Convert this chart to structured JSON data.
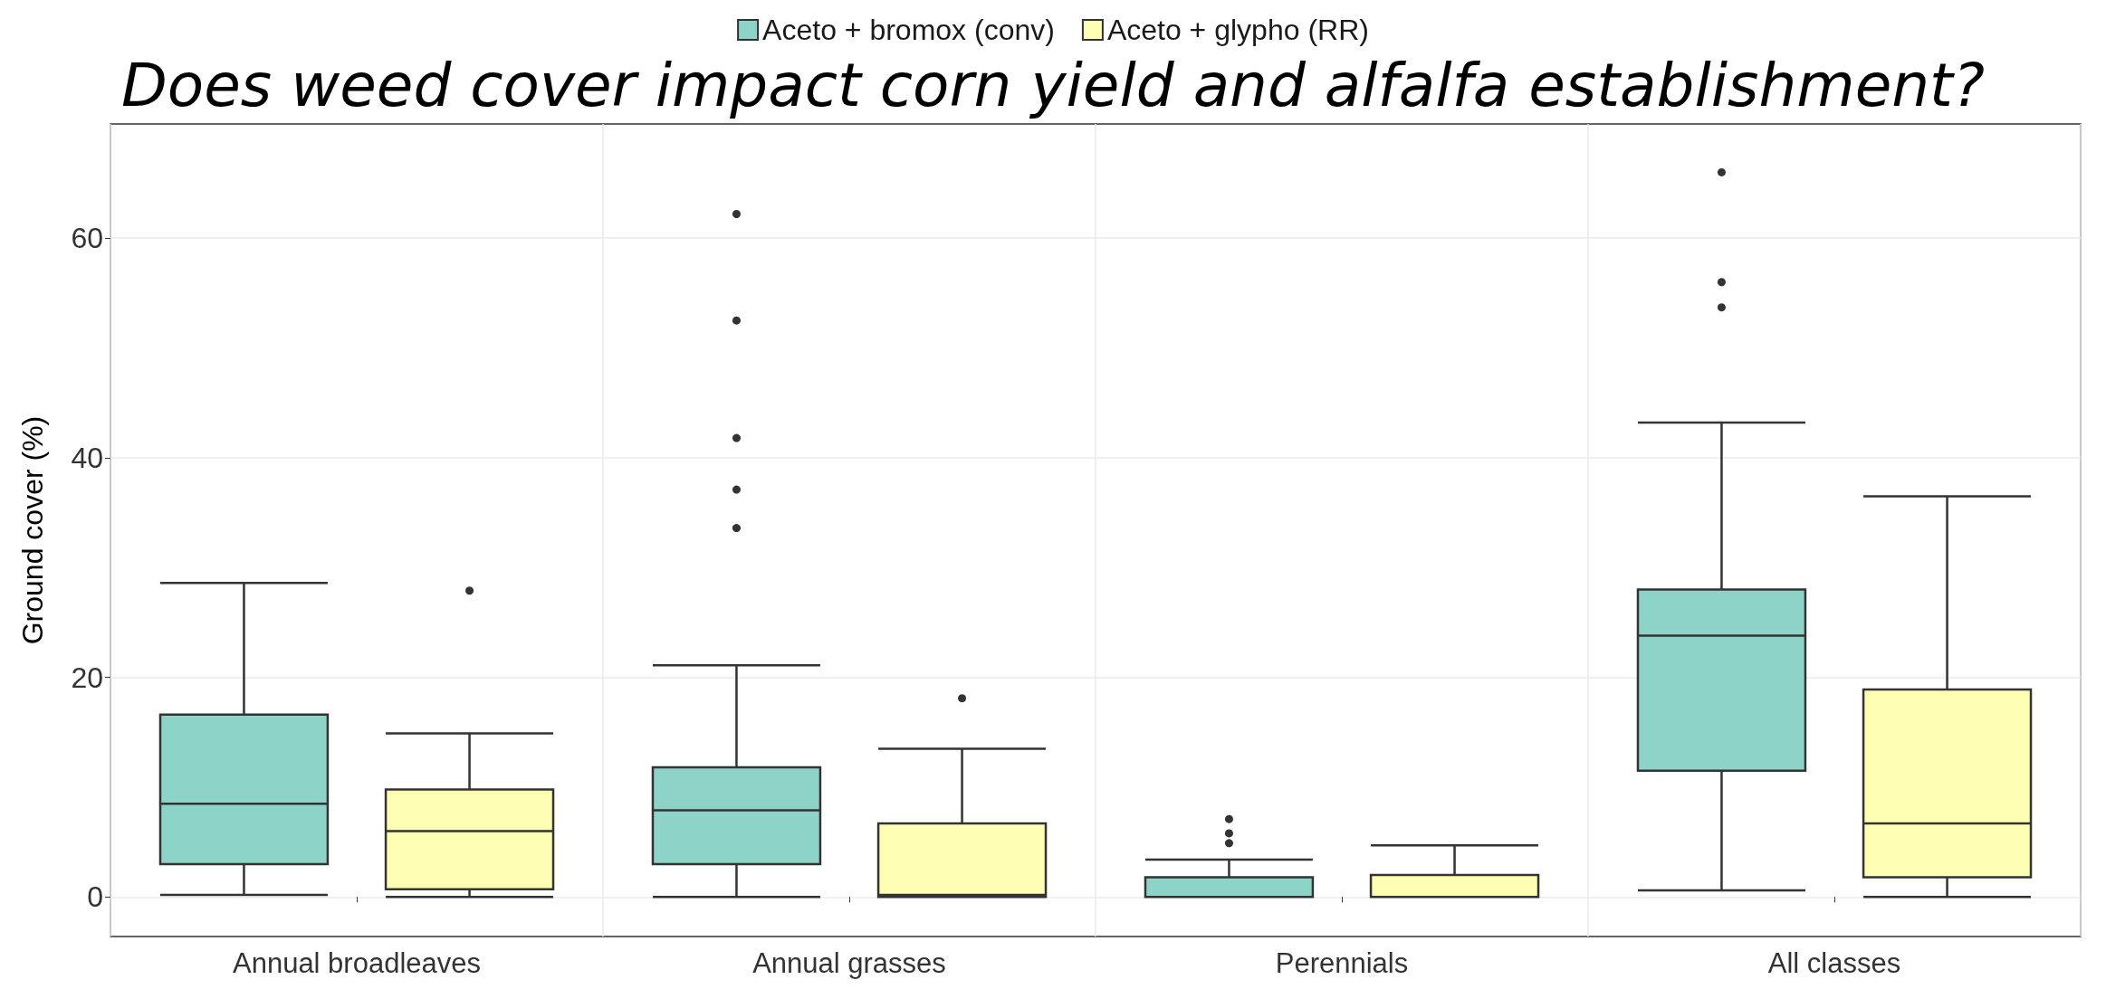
{
  "chart_data": {
    "type": "box",
    "title": "Does weed cover impact corn yield and alfalfa establishment?",
    "ylabel": "Ground cover (%)",
    "categories": [
      "Annual broadleaves",
      "Annual grasses",
      "Perennials",
      "All classes"
    ],
    "series": [
      {
        "name": "Aceto + bromox (conv)",
        "color": "#8dd3c7",
        "boxes": [
          {
            "low": 0.2,
            "q1": 3.0,
            "median": 8.5,
            "q3": 16.6,
            "high": 28.6
          },
          {
            "low": 0,
            "q1": 3.0,
            "median": 7.9,
            "q3": 11.8,
            "high": 21.1,
            "outliers": [
              33.6,
              37.1,
              41.8,
              52.5,
              62.2
            ]
          },
          {
            "low": 0,
            "q1": 0,
            "median": 0,
            "q3": 1.8,
            "high": 3.4,
            "outliers": [
              4.9,
              5.8,
              7.1
            ]
          },
          {
            "low": 0.6,
            "q1": 11.5,
            "median": 23.8,
            "q3": 28.0,
            "high": 43.2,
            "outliers": [
              53.7,
              56,
              66
            ]
          }
        ]
      },
      {
        "name": "Aceto + glypho (RR)",
        "color": "#ffffb3",
        "boxes": [
          {
            "low": 0,
            "q1": 0.7,
            "median": 6.0,
            "q3": 9.8,
            "high": 14.9,
            "outliers": [
              27.9
            ]
          },
          {
            "low": 0,
            "q1": 0,
            "median": 0.2,
            "q3": 6.7,
            "high": 13.5,
            "outliers": [
              18.1
            ]
          },
          {
            "low": 0,
            "q1": 0,
            "median": 0,
            "q3": 2.0,
            "high": 4.7
          },
          {
            "low": 0,
            "q1": 1.8,
            "median": 6.7,
            "q3": 18.9,
            "high": 36.5
          }
        ]
      }
    ],
    "ylim": [
      -3.6,
      70.4
    ],
    "yticks": [
      0,
      20,
      40,
      60
    ],
    "grid": true,
    "legend": "top"
  }
}
